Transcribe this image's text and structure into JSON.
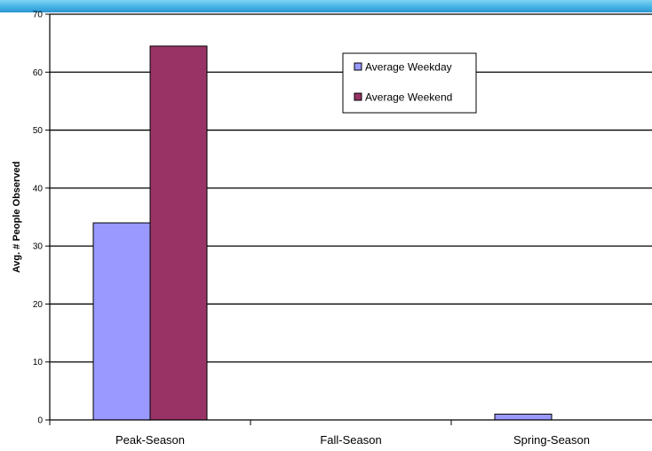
{
  "header": {
    "accent_color": "#45b4e6"
  },
  "chart_data": {
    "type": "bar",
    "categories": [
      "Peak-Season",
      "Fall-Season",
      "Spring-Season"
    ],
    "series": [
      {
        "name": "Average Weekday",
        "values": [
          34,
          0,
          1
        ],
        "color": "#9999ff"
      },
      {
        "name": "Average Weekend",
        "values": [
          64.5,
          0,
          0
        ],
        "color": "#993366"
      }
    ],
    "title": "",
    "xlabel": "",
    "ylabel": "Avg. # People Observed",
    "ylim": [
      0,
      70
    ],
    "yticks": [
      0,
      10,
      20,
      30,
      40,
      50,
      60,
      70
    ],
    "grid": true,
    "legend_position": "top-center"
  }
}
